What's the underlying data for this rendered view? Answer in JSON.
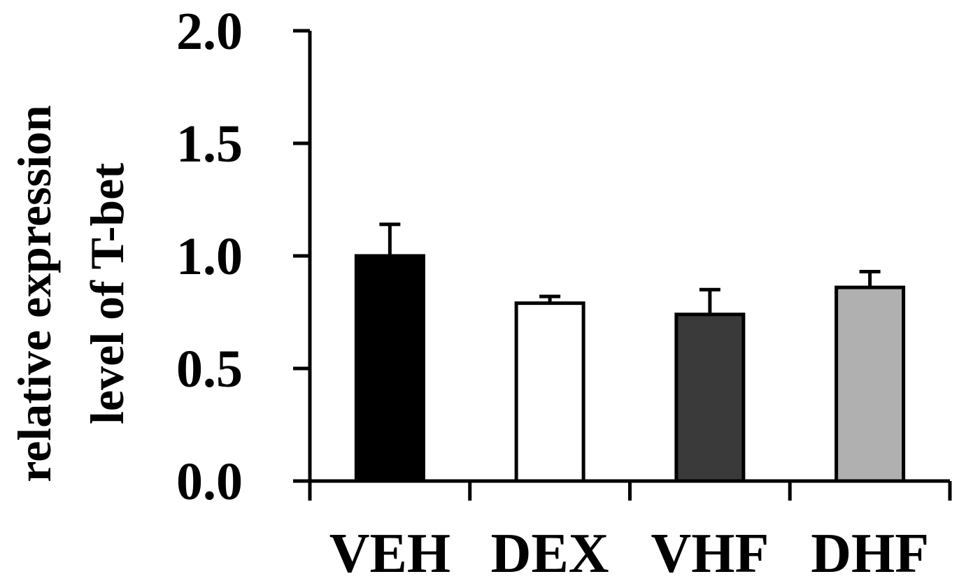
{
  "chart_data": {
    "type": "bar",
    "title": "",
    "xlabel": "",
    "ylabel_lines": [
      "relative expression",
      "level of T-bet"
    ],
    "categories": [
      "VEH",
      "DEX",
      "VHF",
      "DHF"
    ],
    "values": [
      1.0,
      0.79,
      0.74,
      0.86
    ],
    "errors": [
      0.14,
      0.03,
      0.11,
      0.07
    ],
    "bar_colors": [
      "#000000",
      "#ffffff",
      "#3a3a3a",
      "#b0b0b0"
    ],
    "ylim": [
      0.0,
      2.0
    ],
    "yticks": [
      "0.0",
      "0.5",
      "1.0",
      "1.5",
      "2.0"
    ],
    "grid": false
  }
}
